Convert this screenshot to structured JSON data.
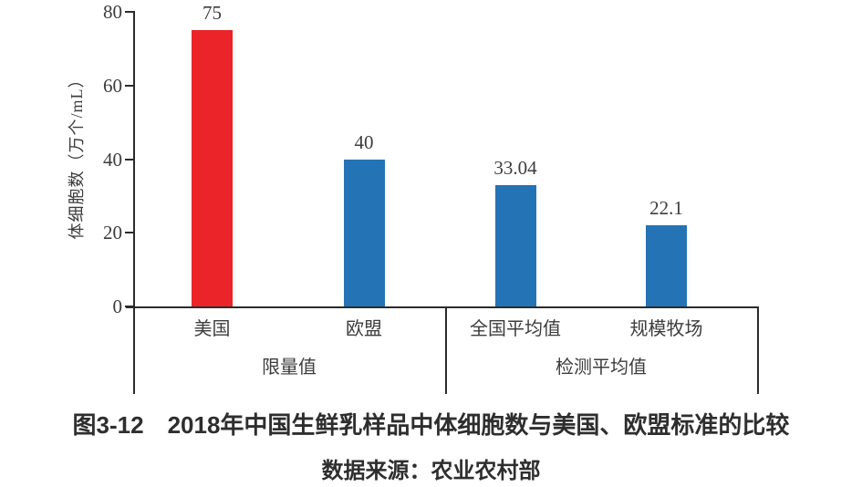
{
  "figure": {
    "caption": "图3-12　2018年中国生鲜乳样品中体细胞数与美国、欧盟标准的比较",
    "source": "数据来源：农业农村部"
  },
  "chart_data": {
    "type": "bar",
    "title": "图3-12　2018年中国生鲜乳样品中体细胞数与美国、欧盟标准的比较",
    "source_note": "数据来源：农业农村部",
    "ylabel": "体细胞数（万个/mL）",
    "xlabel": "",
    "ylim": [
      0,
      80
    ],
    "yticks": [
      0,
      20,
      40,
      60,
      80
    ],
    "grid": false,
    "legend": "none",
    "categories": [
      "美国",
      "欧盟",
      "全国平均值",
      "规模牧场"
    ],
    "values": [
      75,
      40,
      33.04,
      22.1
    ],
    "value_labels": [
      "75",
      "40",
      "33.04",
      "22.1"
    ],
    "bar_colors": [
      "#ea2428",
      "#2473b5",
      "#2473b5",
      "#2473b5"
    ],
    "groups": [
      {
        "label": "限量值",
        "categories": [
          "美国",
          "欧盟"
        ]
      },
      {
        "label": "检测平均值",
        "categories": [
          "全国平均值",
          "规模牧场"
        ]
      }
    ]
  },
  "colors": {
    "highlight_bar": "#ea2428",
    "default_bar": "#2473b5",
    "axis": "#2b2b2b",
    "text": "#3c3c3c",
    "background": "#ffffff"
  }
}
